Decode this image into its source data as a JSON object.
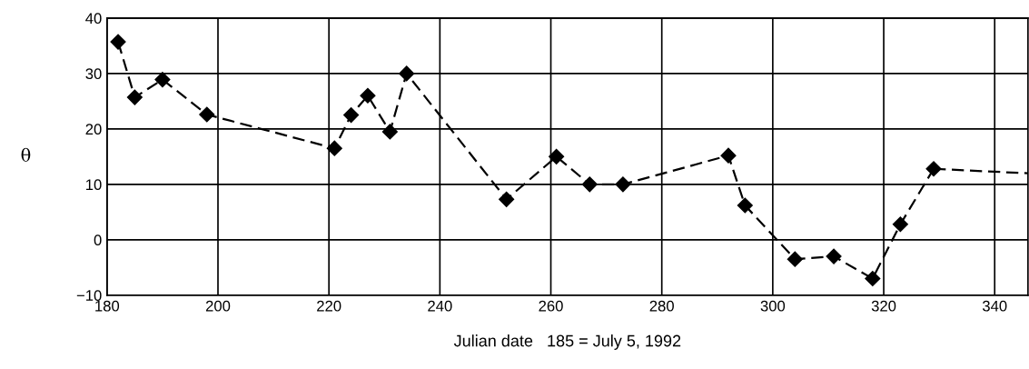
{
  "chart_data": {
    "type": "line",
    "xlabel": "Julian date   185 = July 5, 1992",
    "ylabel": "θ",
    "xlim": [
      180,
      346
    ],
    "xticks": [
      180,
      200,
      220,
      240,
      260,
      280,
      300,
      320,
      340
    ],
    "ylim": [
      -10,
      40
    ],
    "yticks": [
      {
        "value": -10,
        "label": "−10"
      },
      0,
      10,
      20,
      30,
      40
    ],
    "grid": true,
    "line_style": "dashed",
    "series": [
      {
        "color": "#000000",
        "marker": "diamond",
        "x": [
          182,
          185,
          190,
          198,
          221,
          224,
          227,
          231,
          234,
          252,
          261,
          267,
          273,
          292,
          295,
          304,
          311,
          318,
          323,
          329
        ],
        "values": [
          35.7,
          25.7,
          28.9,
          22.6,
          16.5,
          22.5,
          26,
          19.5,
          30,
          7.3,
          15,
          10,
          10,
          15.2,
          6.2,
          -3.5,
          -3,
          -7,
          2.8,
          12.8
        ]
      },
      {
        "color": "#000000",
        "marker": "none",
        "x": [
          329,
          346
        ],
        "values": [
          12.8,
          12
        ]
      }
    ]
  }
}
